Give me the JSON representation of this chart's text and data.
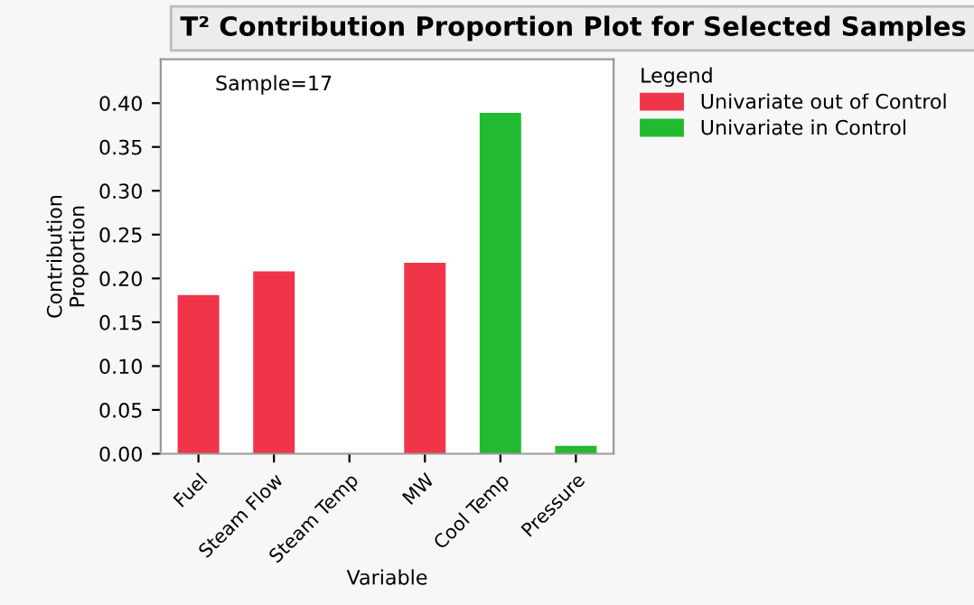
{
  "chart_data": {
    "type": "bar",
    "title": "T² Contribution Proportion Plot for Selected Samples",
    "xlabel": "Variable",
    "ylabel": "Contribution\nProportion",
    "legend_title": "Legend",
    "annotations": [
      "Sample=17"
    ],
    "categories": [
      "Fuel",
      "Steam Flow",
      "Steam Temp",
      "MW",
      "Cool Temp",
      "Pressure"
    ],
    "series": [
      {
        "name": "Univariate out of Control",
        "color": "#f0344a",
        "values": [
          0.181,
          0.208,
          null,
          0.218,
          null,
          null
        ]
      },
      {
        "name": "Univariate in Control",
        "color": "#21ba30",
        "values": [
          null,
          null,
          null,
          null,
          0.389,
          0.009
        ]
      }
    ],
    "ylim": [
      0,
      0.45
    ],
    "yticks": [
      {
        "value": 0,
        "label": "0.00"
      },
      {
        "value": 0.05,
        "label": "0.05"
      },
      {
        "value": 0.1,
        "label": "0.10"
      },
      {
        "value": 0.15,
        "label": "0.15"
      },
      {
        "value": 0.2,
        "label": "0.20"
      },
      {
        "value": 0.25,
        "label": "0.25"
      },
      {
        "value": 0.3,
        "label": "0.30"
      },
      {
        "value": 0.35,
        "label": "0.35"
      },
      {
        "value": 0.4,
        "label": "0.40"
      }
    ],
    "grid": false,
    "legend": "right"
  }
}
